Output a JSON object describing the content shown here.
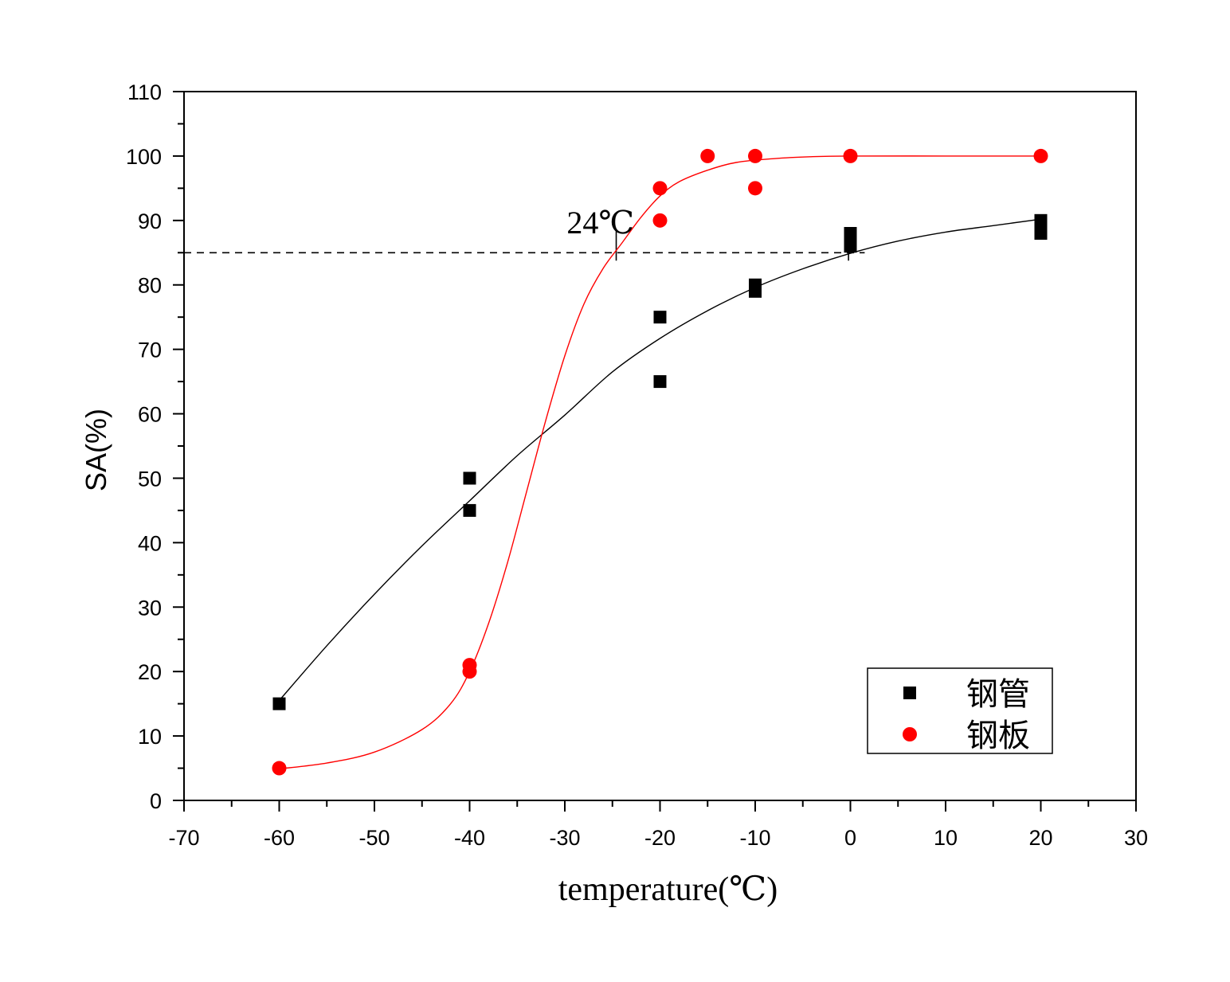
{
  "chart_data": {
    "type": "scatter",
    "xlabel": "temperature(℃)",
    "ylabel": "SA(%)",
    "xlim": [
      -70,
      30
    ],
    "ylim": [
      0,
      110
    ],
    "xticks": [
      -70,
      -60,
      -50,
      -40,
      -30,
      -20,
      -10,
      0,
      10,
      20,
      30
    ],
    "yticks": [
      0,
      10,
      20,
      30,
      40,
      50,
      60,
      70,
      80,
      90,
      100,
      110
    ],
    "grid": false,
    "legend_position": "bottom-right",
    "series": [
      {
        "name": "钢管",
        "marker": "square",
        "color": "#000000",
        "points": [
          [
            -60,
            15
          ],
          [
            -40,
            50
          ],
          [
            -40,
            45
          ],
          [
            -20,
            75
          ],
          [
            -20,
            65
          ],
          [
            -10,
            80
          ],
          [
            -10,
            79
          ],
          [
            0,
            88
          ],
          [
            0,
            87
          ],
          [
            0,
            86
          ],
          [
            20,
            90
          ],
          [
            20,
            89
          ],
          [
            20,
            88
          ]
        ],
        "fit_curve": [
          [
            -60,
            15.5
          ],
          [
            -55,
            24
          ],
          [
            -50,
            32
          ],
          [
            -45,
            39.5
          ],
          [
            -40,
            46.5
          ],
          [
            -35,
            53.5
          ],
          [
            -30,
            59.8
          ],
          [
            -25,
            66.5
          ],
          [
            -20,
            71.7
          ],
          [
            -15,
            76
          ],
          [
            -10,
            79.6
          ],
          [
            -5,
            82.5
          ],
          [
            0,
            84.9
          ],
          [
            5,
            86.8
          ],
          [
            10,
            88.2
          ],
          [
            15,
            89.2
          ],
          [
            20,
            90.2
          ]
        ]
      },
      {
        "name": "钢板",
        "marker": "circle",
        "color": "#ff0000",
        "points": [
          [
            -60,
            5
          ],
          [
            -40,
            21
          ],
          [
            -40,
            20
          ],
          [
            -20,
            95
          ],
          [
            -20,
            90
          ],
          [
            -15,
            100
          ],
          [
            -10,
            100
          ],
          [
            -10,
            95
          ],
          [
            0,
            100
          ],
          [
            20,
            100
          ]
        ],
        "fit_curve": [
          [
            -60,
            4.9
          ],
          [
            -55,
            5.8
          ],
          [
            -50,
            7.5
          ],
          [
            -45,
            11
          ],
          [
            -42,
            15
          ],
          [
            -40,
            20
          ],
          [
            -38,
            27.5
          ],
          [
            -36,
            37
          ],
          [
            -34,
            48
          ],
          [
            -32,
            59
          ],
          [
            -30,
            69
          ],
          [
            -28,
            77
          ],
          [
            -26,
            82.5
          ],
          [
            -24,
            86.5
          ],
          [
            -22,
            90.5
          ],
          [
            -20,
            93.8
          ],
          [
            -18,
            96
          ],
          [
            -15,
            97.8
          ],
          [
            -12,
            99
          ],
          [
            -8,
            99.6
          ],
          [
            -4,
            99.9
          ],
          [
            0,
            100
          ],
          [
            10,
            100
          ],
          [
            20,
            100
          ]
        ]
      }
    ],
    "annotations": [
      {
        "text": "24℃",
        "x": -29.8,
        "y": 88
      }
    ],
    "reference_line": {
      "y": 85,
      "x_from": -70,
      "x_to": 1.5,
      "style": "dashed"
    },
    "crossing_marks": [
      {
        "x": -24.6,
        "y": 85
      },
      {
        "x": -0.2,
        "y": 85
      }
    ]
  }
}
